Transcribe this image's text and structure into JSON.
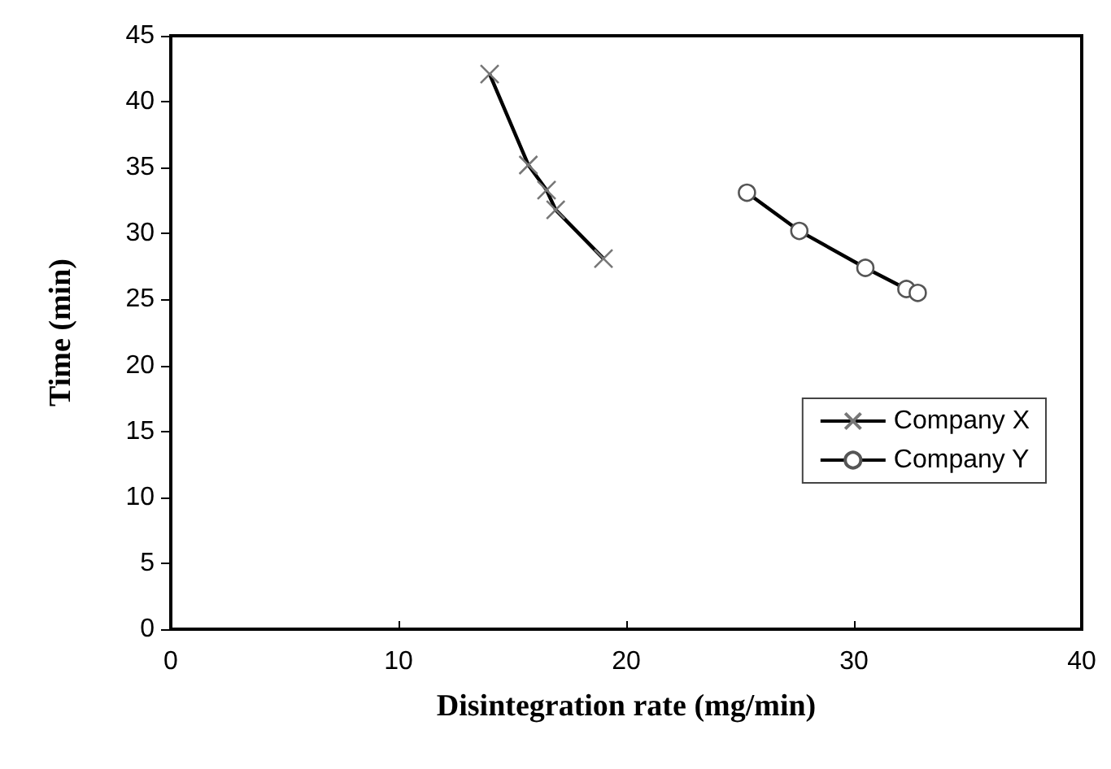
{
  "chart_data": {
    "type": "line",
    "xlabel": "Disintegration rate (mg/min)",
    "ylabel": "Time (min)",
    "xlim": [
      0,
      40
    ],
    "xticks": [
      0,
      10,
      20,
      30,
      40
    ],
    "ylim": [
      0,
      45
    ],
    "yticks": [
      0,
      5,
      10,
      15,
      20,
      25,
      30,
      35,
      40,
      45
    ],
    "grid": false,
    "legend": "right",
    "line_style": "solid",
    "series": [
      {
        "name": "Company X",
        "color": "#000000",
        "marker": "cross",
        "x": [
          14.0,
          15.7,
          16.5,
          16.9,
          19.0
        ],
        "values": [
          42.1,
          35.2,
          33.3,
          31.8,
          28.1
        ]
      },
      {
        "name": "Company Y",
        "color": "#000000",
        "marker": "circle",
        "x": [
          25.3,
          27.6,
          30.5,
          32.3,
          32.8
        ],
        "values": [
          33.1,
          30.2,
          27.4,
          25.8,
          25.5
        ]
      }
    ]
  }
}
